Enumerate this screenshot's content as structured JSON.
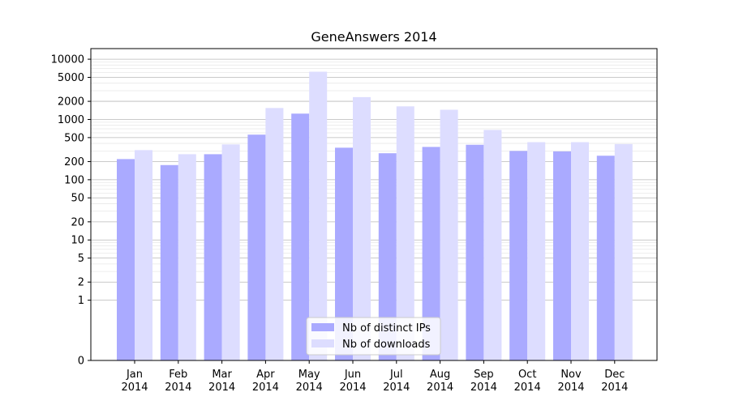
{
  "chart_data": {
    "type": "bar",
    "title": "GeneAnswers 2014",
    "xlabel": "",
    "ylabel": "",
    "yscale": "symlog",
    "ylim": [
      0,
      15000
    ],
    "grid": "y (major and minor)",
    "legend_position": "bottom-center",
    "categories": [
      {
        "month": "Jan",
        "year": "2014"
      },
      {
        "month": "Feb",
        "year": "2014"
      },
      {
        "month": "Mar",
        "year": "2014"
      },
      {
        "month": "Apr",
        "year": "2014"
      },
      {
        "month": "May",
        "year": "2014"
      },
      {
        "month": "Jun",
        "year": "2014"
      },
      {
        "month": "Jul",
        "year": "2014"
      },
      {
        "month": "Aug",
        "year": "2014"
      },
      {
        "month": "Sep",
        "year": "2014"
      },
      {
        "month": "Oct",
        "year": "2014"
      },
      {
        "month": "Nov",
        "year": "2014"
      },
      {
        "month": "Dec",
        "year": "2014"
      }
    ],
    "yticks": [
      {
        "value": 0,
        "label": "0"
      },
      {
        "value": 1,
        "label": "1"
      },
      {
        "value": 2,
        "label": "2"
      },
      {
        "value": 5,
        "label": "5"
      },
      {
        "value": 10,
        "label": "10"
      },
      {
        "value": 20,
        "label": "20"
      },
      {
        "value": 50,
        "label": "50"
      },
      {
        "value": 100,
        "label": "100"
      },
      {
        "value": 200,
        "label": "200"
      },
      {
        "value": 500,
        "label": "500"
      },
      {
        "value": 1000,
        "label": "1000"
      },
      {
        "value": 2000,
        "label": "2000"
      },
      {
        "value": 5000,
        "label": "5000"
      },
      {
        "value": 10000,
        "label": "10000"
      }
    ],
    "series": [
      {
        "name": "Nb of distinct IPs",
        "color": "#aaaaff",
        "values": [
          220,
          175,
          265,
          560,
          1250,
          340,
          275,
          350,
          380,
          300,
          295,
          250
        ]
      },
      {
        "name": "Nb of downloads",
        "color": "#ddddff",
        "values": [
          310,
          265,
          385,
          1550,
          6200,
          2350,
          1650,
          1450,
          670,
          420,
          420,
          390
        ]
      }
    ]
  }
}
